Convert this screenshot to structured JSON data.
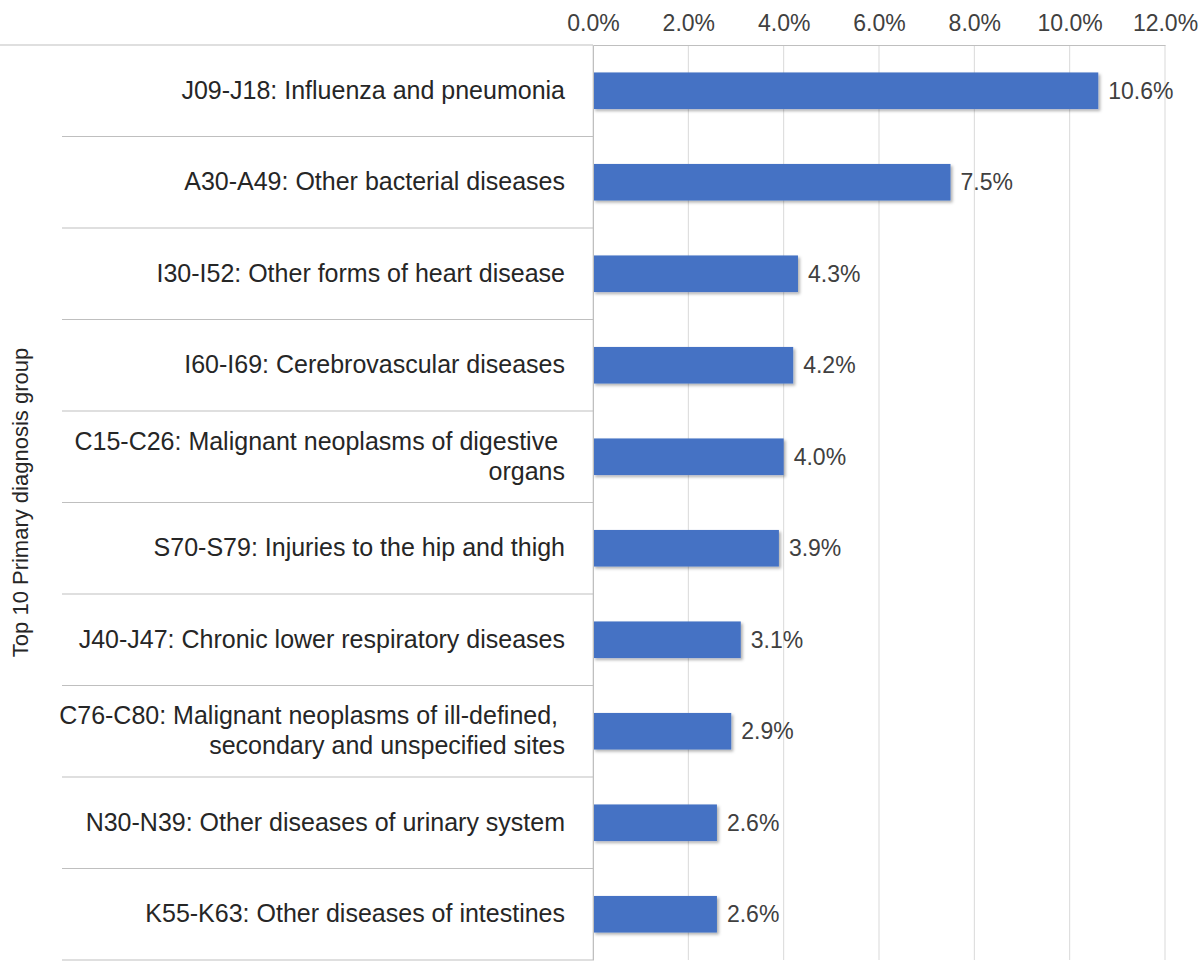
{
  "chart_data": {
    "type": "bar",
    "orientation": "horizontal",
    "ylabel": "Top 10 Primary diagnosis group",
    "categories": [
      "J09-J18: Influenza and pneumonia",
      "A30-A49: Other bacterial diseases",
      "I30-I52: Other forms of heart disease",
      "I60-I69: Cerebrovascular diseases",
      "C15-C26: Malignant neoplasms of digestive organs",
      "S70-S79: Injuries to the hip and thigh",
      "J40-J47: Chronic lower respiratory diseases",
      "C76-C80: Malignant neoplasms of ill-defined, secondary and unspecified sites",
      "N30-N39: Other diseases of urinary system",
      "K55-K63: Other diseases of intestines"
    ],
    "values": [
      10.6,
      7.5,
      4.3,
      4.2,
      4.0,
      3.9,
      3.1,
      2.9,
      2.6,
      2.6
    ],
    "value_labels": [
      "10.6%",
      "7.5%",
      "4.3%",
      "4.2%",
      "4.0%",
      "3.9%",
      "3.1%",
      "2.9%",
      "2.6%",
      "2.6%"
    ],
    "color": "#4472c4",
    "xlim": [
      0,
      12
    ],
    "xticks": [
      {
        "value": 0,
        "label": "0.0%"
      },
      {
        "value": 2,
        "label": "2.0%"
      },
      {
        "value": 4,
        "label": "4.0%"
      },
      {
        "value": 6,
        "label": "6.0%"
      },
      {
        "value": 8,
        "label": "8.0%"
      },
      {
        "value": 10,
        "label": "10.0%"
      },
      {
        "value": 12,
        "label": "12.0%"
      }
    ],
    "grid": true,
    "data_labels": true
  }
}
